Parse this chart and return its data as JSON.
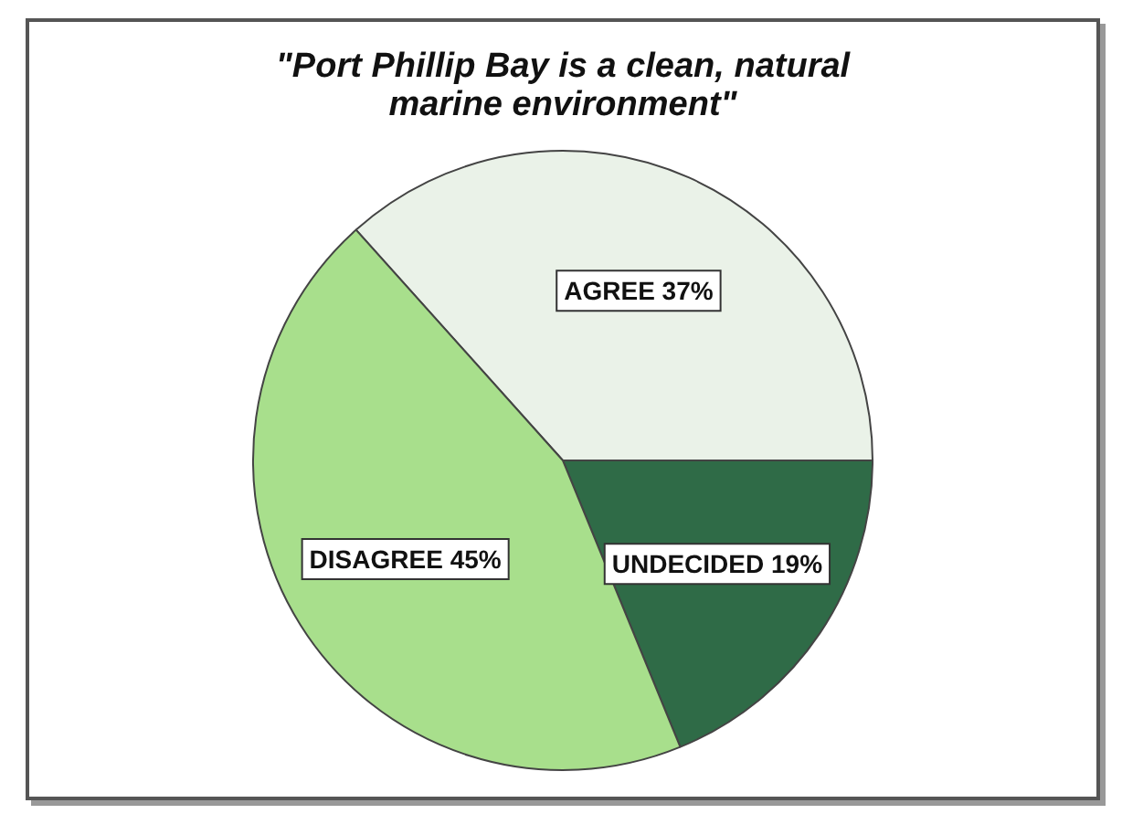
{
  "chart_data": {
    "type": "pie",
    "title": "\"Port Phillip Bay is a clean, natural marine environment\"",
    "categories": [
      "AGREE",
      "UNDECIDED",
      "DISAGREE"
    ],
    "values": [
      37,
      19,
      45
    ],
    "value_labels": [
      "37%",
      "19%",
      "45%"
    ],
    "colors": [
      "#eaf2e8",
      "#2f6b47",
      "#a8df8c"
    ],
    "legend": false
  }
}
